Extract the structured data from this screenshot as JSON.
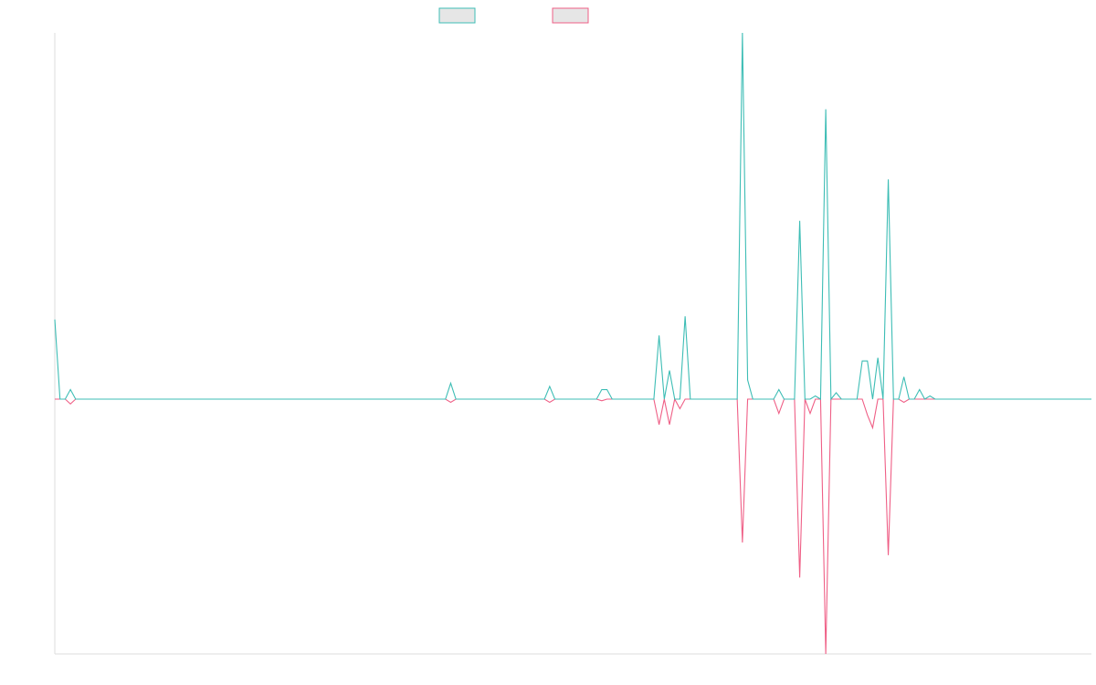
{
  "chart_data": {
    "type": "line",
    "title": "",
    "xlabel": "",
    "ylabel": "",
    "grid": false,
    "legend": {
      "placement": "top-center",
      "show_labels": false
    },
    "x_count": 200,
    "ylim": [
      -100,
      100
    ],
    "colors": {
      "series_a": "#3dbdb5",
      "series_b": "#ef5f86",
      "legend_fill": "#e6e6e6",
      "axis": "#dddddd"
    },
    "series": [
      {
        "key": "a",
        "values": [
          {
            "x": 0,
            "y": 25
          },
          {
            "x": 1,
            "y": 0
          },
          {
            "x": 2,
            "y": 0
          },
          {
            "x": 3,
            "y": 3
          },
          {
            "x": 4,
            "y": 0
          },
          {
            "x": 75,
            "y": 0
          },
          {
            "x": 76,
            "y": 5
          },
          {
            "x": 77,
            "y": 0
          },
          {
            "x": 94,
            "y": 0
          },
          {
            "x": 95,
            "y": 4
          },
          {
            "x": 96,
            "y": 0
          },
          {
            "x": 104,
            "y": 0
          },
          {
            "x": 105,
            "y": 3
          },
          {
            "x": 106,
            "y": 3
          },
          {
            "x": 107,
            "y": 0
          },
          {
            "x": 115,
            "y": 0
          },
          {
            "x": 116,
            "y": 20
          },
          {
            "x": 117,
            "y": 0
          },
          {
            "x": 118,
            "y": 9
          },
          {
            "x": 119,
            "y": 0
          },
          {
            "x": 120,
            "y": 0
          },
          {
            "x": 121,
            "y": 26
          },
          {
            "x": 122,
            "y": 0
          },
          {
            "x": 131,
            "y": 0
          },
          {
            "x": 132,
            "y": 115
          },
          {
            "x": 133,
            "y": 6
          },
          {
            "x": 134,
            "y": 0
          },
          {
            "x": 138,
            "y": 0
          },
          {
            "x": 139,
            "y": 3
          },
          {
            "x": 140,
            "y": 0
          },
          {
            "x": 142,
            "y": 0
          },
          {
            "x": 143,
            "y": 56
          },
          {
            "x": 144,
            "y": 0
          },
          {
            "x": 145,
            "y": 0
          },
          {
            "x": 146,
            "y": 1
          },
          {
            "x": 147,
            "y": 0
          },
          {
            "x": 148,
            "y": 91
          },
          {
            "x": 149,
            "y": 0
          },
          {
            "x": 150,
            "y": 2
          },
          {
            "x": 151,
            "y": 0
          },
          {
            "x": 154,
            "y": 0
          },
          {
            "x": 155,
            "y": 12
          },
          {
            "x": 156,
            "y": 12
          },
          {
            "x": 157,
            "y": 0
          },
          {
            "x": 158,
            "y": 13
          },
          {
            "x": 159,
            "y": 0
          },
          {
            "x": 160,
            "y": 69
          },
          {
            "x": 161,
            "y": 0
          },
          {
            "x": 162,
            "y": 0
          },
          {
            "x": 163,
            "y": 7
          },
          {
            "x": 164,
            "y": 0
          },
          {
            "x": 165,
            "y": 0
          },
          {
            "x": 166,
            "y": 3
          },
          {
            "x": 167,
            "y": 0
          },
          {
            "x": 168,
            "y": 1
          },
          {
            "x": 169,
            "y": 0
          },
          {
            "x": 199,
            "y": 0
          }
        ]
      },
      {
        "key": "b",
        "values": [
          {
            "x": 0,
            "y": 0
          },
          {
            "x": 1,
            "y": 0
          },
          {
            "x": 2,
            "y": 0
          },
          {
            "x": 3,
            "y": -1.5
          },
          {
            "x": 4,
            "y": 0
          },
          {
            "x": 75,
            "y": 0
          },
          {
            "x": 76,
            "y": -1
          },
          {
            "x": 77,
            "y": 0
          },
          {
            "x": 94,
            "y": 0
          },
          {
            "x": 95,
            "y": -1
          },
          {
            "x": 96,
            "y": 0
          },
          {
            "x": 104,
            "y": 0
          },
          {
            "x": 105,
            "y": -0.5
          },
          {
            "x": 106,
            "y": 0
          },
          {
            "x": 115,
            "y": 0
          },
          {
            "x": 116,
            "y": -8
          },
          {
            "x": 117,
            "y": 0
          },
          {
            "x": 118,
            "y": -8
          },
          {
            "x": 119,
            "y": 0
          },
          {
            "x": 120,
            "y": -3
          },
          {
            "x": 121,
            "y": 0
          },
          {
            "x": 131,
            "y": 0
          },
          {
            "x": 132,
            "y": -45
          },
          {
            "x": 133,
            "y": 0
          },
          {
            "x": 138,
            "y": 0
          },
          {
            "x": 139,
            "y": -4.5
          },
          {
            "x": 140,
            "y": 0
          },
          {
            "x": 142,
            "y": 0
          },
          {
            "x": 143,
            "y": -56
          },
          {
            "x": 144,
            "y": 0
          },
          {
            "x": 145,
            "y": -4.5
          },
          {
            "x": 146,
            "y": 0
          },
          {
            "x": 147,
            "y": 0
          },
          {
            "x": 148,
            "y": -80
          },
          {
            "x": 149,
            "y": 0
          },
          {
            "x": 155,
            "y": 0
          },
          {
            "x": 156,
            "y": -5
          },
          {
            "x": 157,
            "y": -9
          },
          {
            "x": 158,
            "y": 0
          },
          {
            "x": 159,
            "y": 0
          },
          {
            "x": 160,
            "y": -49
          },
          {
            "x": 161,
            "y": 0
          },
          {
            "x": 162,
            "y": 0
          },
          {
            "x": 163,
            "y": -1
          },
          {
            "x": 164,
            "y": 0
          },
          {
            "x": 199,
            "y": 0
          }
        ]
      }
    ]
  }
}
